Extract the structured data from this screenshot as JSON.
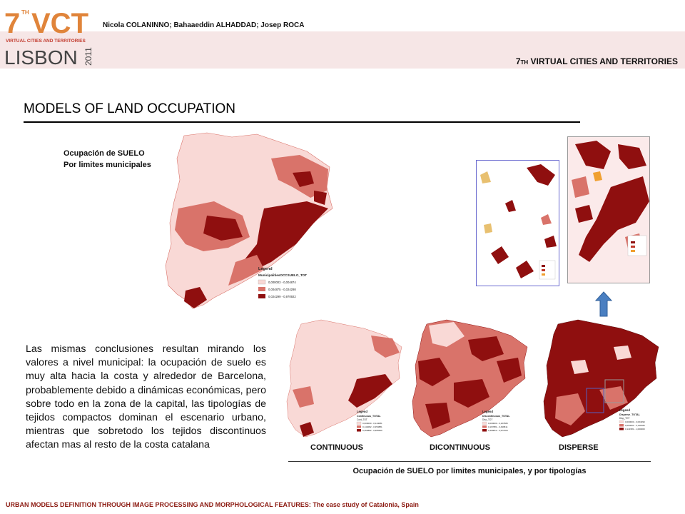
{
  "header": {
    "logo_number": "7",
    "logo_th": "TH",
    "logo_vct": "VCT",
    "logo_subtitle": "VIRTUAL CITIES AND TERRITORIES",
    "logo_city": "LISBON",
    "logo_year": "2011",
    "authors": "Nicola COLANINNO; Bahaaeddin ALHADDAD; Josep ROCA",
    "conference_number": "7",
    "conference_th": "TH",
    "conference_name": "VIRTUAL CITIES AND TERRITORIES"
  },
  "slide": {
    "title": "MODELS OF LAND OCCUPATION",
    "map_label_line1": "Ocupación de SUELO",
    "map_label_line2": "Por limites municipales",
    "body_text": "Las mismas conclusiones resultan mirando los valores a nivel municipal: la ocupación de suelo es muy alta hacia la costa y alrededor de Barcelona, probablemente debido a dinámicas económicas, pero sobre todo en la zona de la capital, las tipologías de tejidos compactos dominan el escenario urbano, mientras que sobretodo los tejidos discontinuos afectan mas al resto de la costa catalana",
    "typology_labels": [
      "CONTINUOUS",
      "DICONTINUOUS",
      "DISPERSE"
    ],
    "caption": "Ocupación de SUELO por limites municipales, y por tipologías"
  },
  "main_map_legend": {
    "title": "Legend",
    "field": "MunicipalitiesOCCSUELO_TOT",
    "classes": [
      "0,000003 - 0,004874",
      "0,004875 - 0,024298",
      "0,024299 - 0,970922"
    ]
  },
  "small_map_legends": [
    {
      "title": "Legend",
      "field": "Continuous_TOTAL",
      "sub": "Cont_TOT",
      "classes": [
        "0,000000 - 0,144081",
        "0,144082 - 0,353881",
        "0,353882 - 0,965560"
      ]
    },
    {
      "title": "Legend",
      "field": "Discontinuous_TOTAL",
      "sub": "Disc_TOT",
      "classes": [
        "0,000000 - 0,167880",
        "0,167881 - 0,499811",
        "0,499812 - 0,977064"
      ]
    },
    {
      "title": "Legend",
      "field": "Disperse_TOTAL",
      "sub": "Disp_TOT",
      "classes": [
        "0,000000 - 0,064090",
        "0,064091 - 0,141580",
        "0,141581 - 1,000000"
      ]
    }
  ],
  "colors": {
    "light": "#f9d9d6",
    "medium": "#d9736a",
    "dark": "#8f0f0f",
    "footer": "#8c1b12",
    "arrow": "#4a7fc1"
  },
  "footer": {
    "text": "URBAN MODELS DEFINITION THROUGH IMAGE PROCESSING AND MORPHOLOGICAL FEATURES: The case study of Catalonia, Spain"
  }
}
